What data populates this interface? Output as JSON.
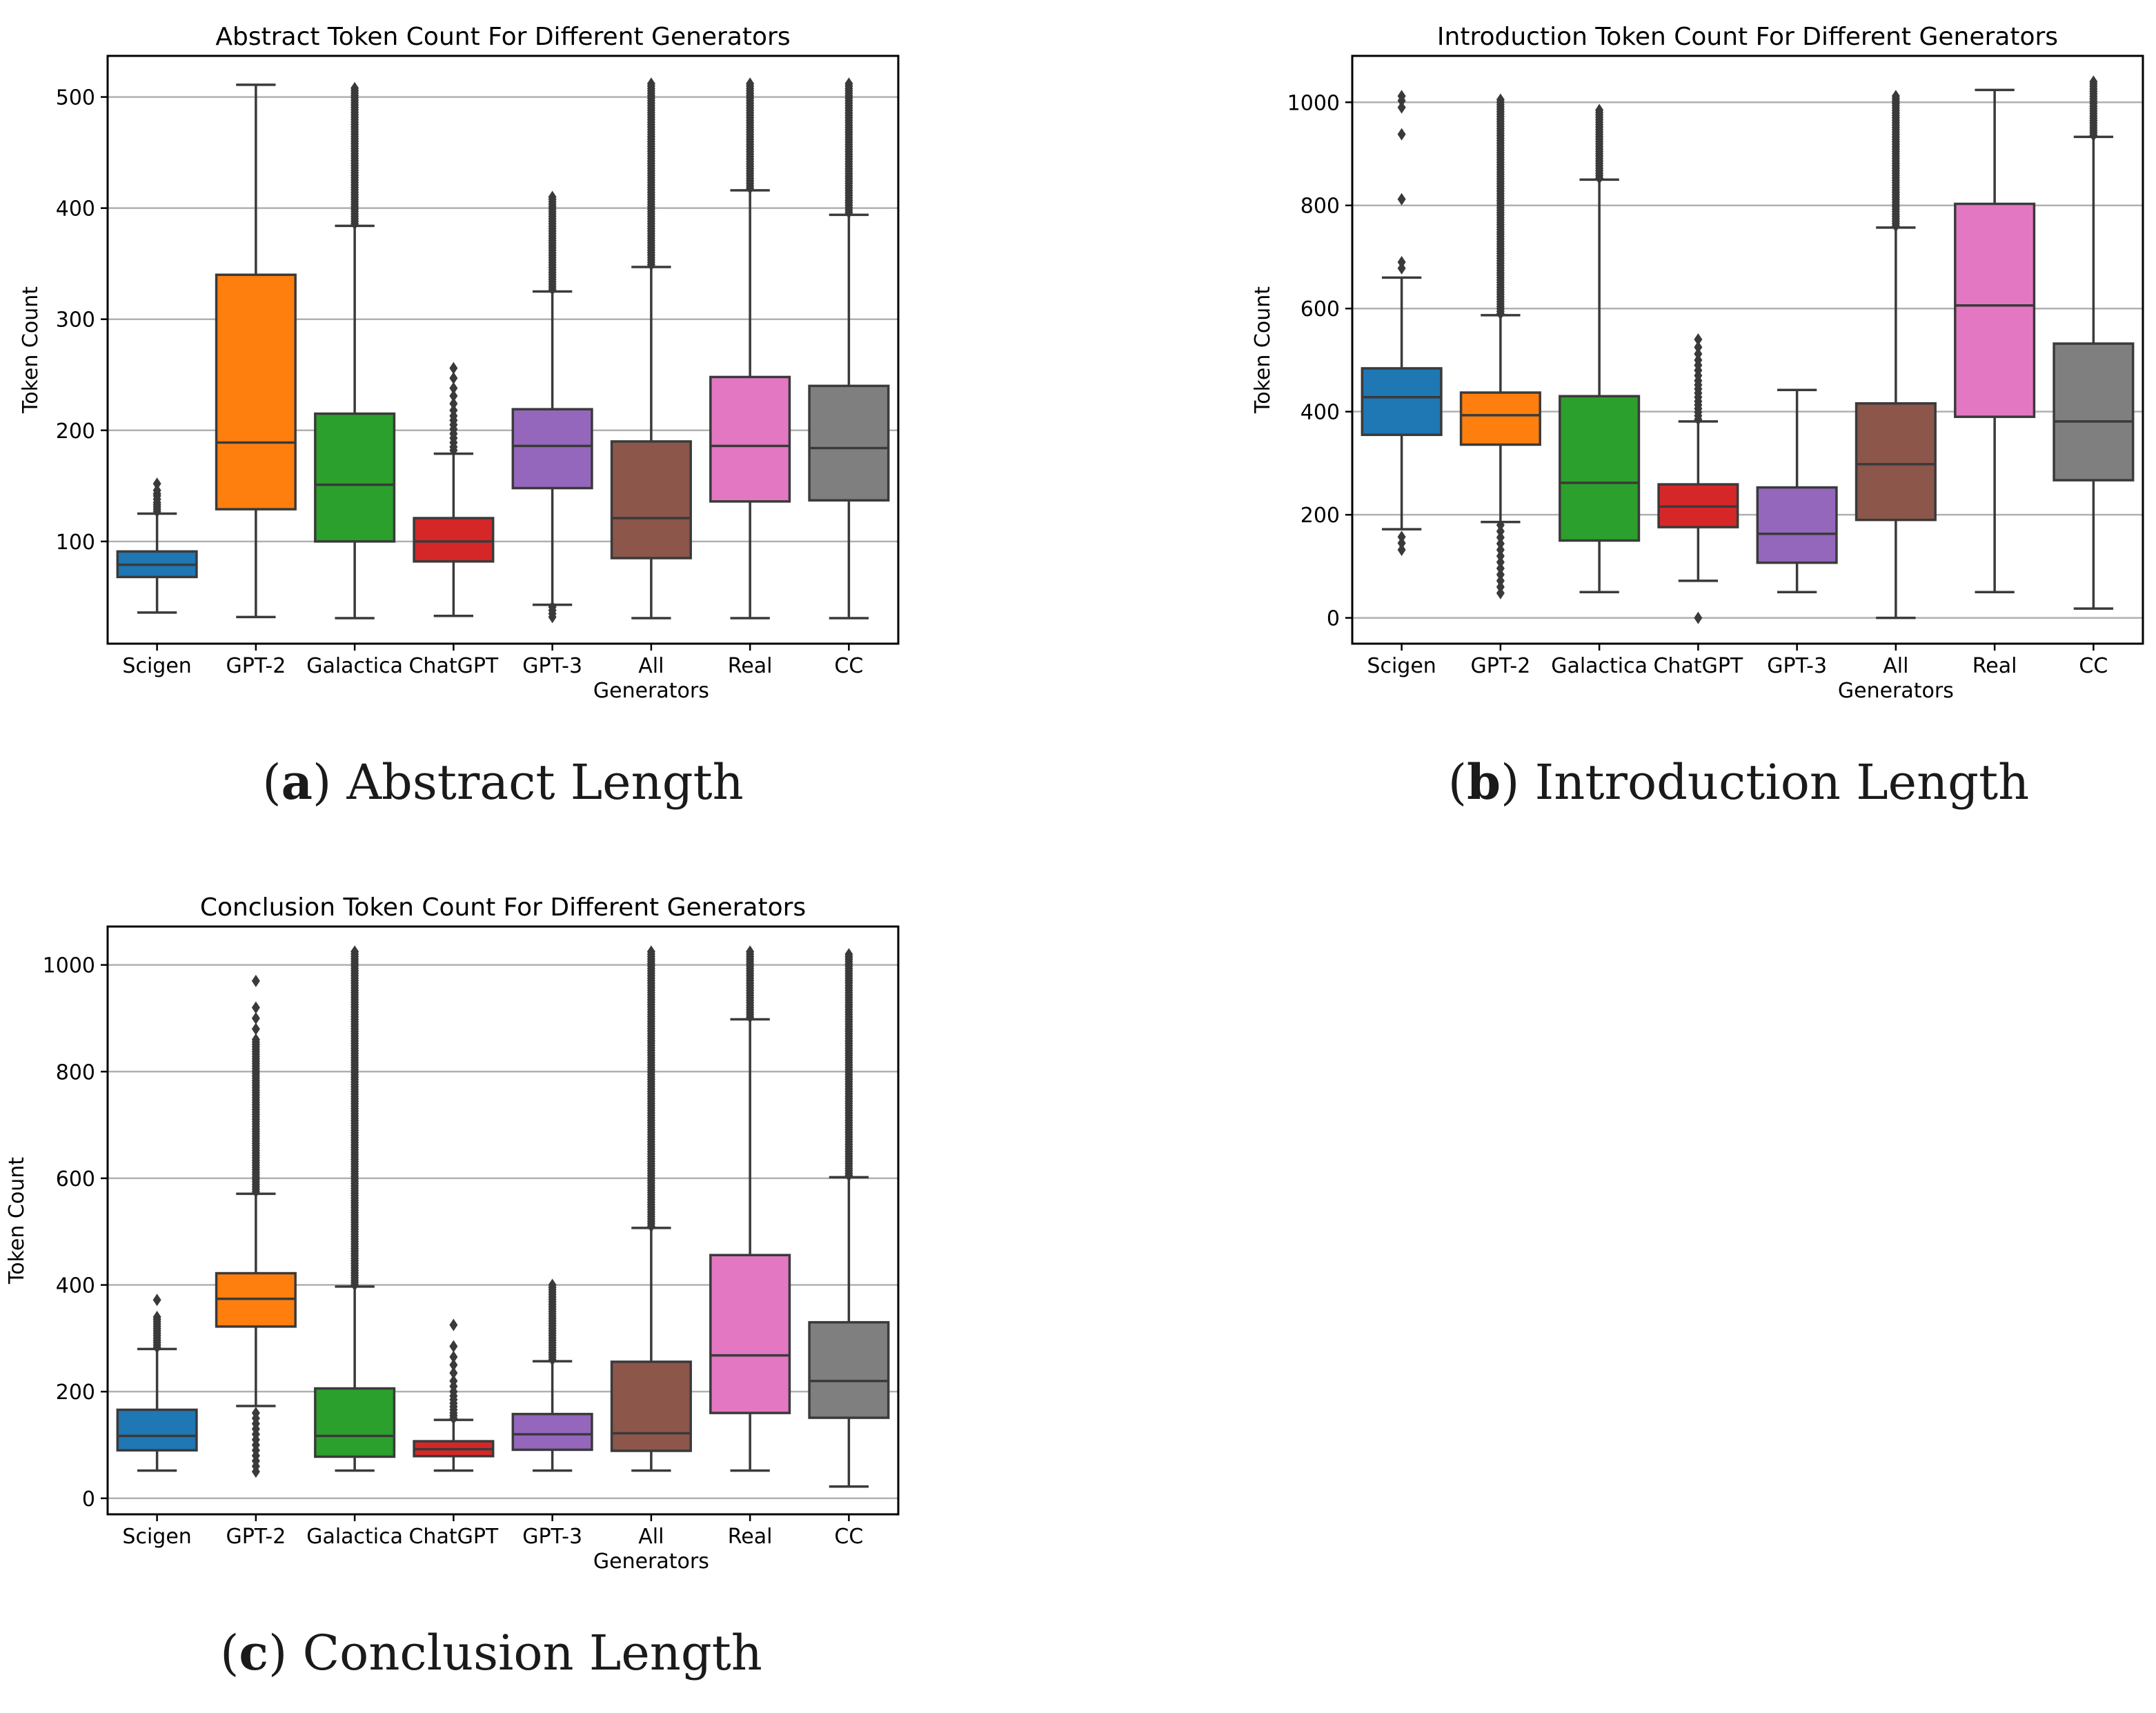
{
  "chart_data": [
    {
      "type": "box",
      "title": "Abstract Token Count For Different Generators",
      "ylabel": "Token Count",
      "xlabel": "",
      "caption": {
        "open": "(",
        "letter": "a",
        "close": ")",
        "text": " Abstract Length"
      },
      "ylim": [
        8,
        537
      ],
      "yticks": [
        100,
        200,
        300,
        400,
        500
      ],
      "grid": "y",
      "categories": [
        {
          "label": [
            "Scigen"
          ],
          "color": "#1f77b4",
          "whislo": 36,
          "q1": 68,
          "med": 79,
          "q3": 91,
          "whishi": 125,
          "fliers": [
            127,
            129,
            131,
            133,
            135,
            138,
            141,
            143,
            146,
            152
          ]
        },
        {
          "label": [
            "GPT-2"
          ],
          "color": "#ff7f0e",
          "whislo": 32,
          "q1": 129,
          "med": 189,
          "q3": 340,
          "whishi": 511,
          "fliers": []
        },
        {
          "label": [
            "Galactica"
          ],
          "color": "#2ca02c",
          "whislo": 31,
          "q1": 100,
          "med": 151,
          "q3": 215,
          "whishi": 384,
          "fliers": {
            "dense": [
              386,
              508
            ]
          }
        },
        {
          "label": [
            "ChatGPT"
          ],
          "color": "#d62728",
          "whislo": 33,
          "q1": 82,
          "med": 100,
          "q3": 121,
          "whishi": 179,
          "fliers": [
            182,
            185,
            189,
            193,
            197,
            201,
            205,
            209,
            213,
            218,
            224,
            231,
            238,
            247,
            256
          ]
        },
        {
          "label": [
            "GPT-3"
          ],
          "color": "#9467bd",
          "whislo": 43,
          "q1": 148,
          "med": 186,
          "q3": 219,
          "whishi": 325,
          "fliers": {
            "dense": [
              327,
              410
            ],
            "low": [
              32,
              35,
              38,
              41
            ]
          }
        },
        {
          "label": [
            "All",
            "Generators"
          ],
          "color": "#8c564b",
          "whislo": 31,
          "q1": 85,
          "med": 121,
          "q3": 190,
          "whishi": 347,
          "fliers": {
            "dense": [
              349,
              512
            ]
          }
        },
        {
          "label": [
            "Real"
          ],
          "color": "#e377c2",
          "whislo": 31,
          "q1": 136,
          "med": 186,
          "q3": 248,
          "whishi": 416,
          "fliers": {
            "dense": [
              418,
              512
            ]
          }
        },
        {
          "label": [
            "CC"
          ],
          "color": "#7f7f7f",
          "whislo": 31,
          "q1": 137,
          "med": 184,
          "q3": 240,
          "whishi": 394,
          "fliers": {
            "dense": [
              396,
              512
            ]
          }
        }
      ]
    },
    {
      "type": "box",
      "title": "Introduction Token Count For Different Generators",
      "ylabel": "Token Count",
      "xlabel": "",
      "caption": {
        "open": "(",
        "letter": "b",
        "close": ")",
        "text": " Introduction Length"
      },
      "ylim": [
        -50,
        1090
      ],
      "yticks": [
        0,
        200,
        400,
        600,
        800,
        1000
      ],
      "grid": "y",
      "categories": [
        {
          "label": [
            "Scigen"
          ],
          "color": "#1f77b4",
          "whislo": 172,
          "q1": 355,
          "med": 428,
          "q3": 484,
          "whishi": 660,
          "fliers": [
            132,
            145,
            157,
            678,
            690,
            812,
            938,
            990,
            1003,
            1012
          ]
        },
        {
          "label": [
            "GPT-2"
          ],
          "color": "#ff7f0e",
          "whislo": 186,
          "q1": 336,
          "med": 393,
          "q3": 437,
          "whishi": 587,
          "fliers": {
            "dense": [
              590,
              1005
            ],
            "low": [
              48,
              60,
              72,
              84,
              96,
              108,
              120,
              132,
              144,
              156,
              168,
              180
            ]
          }
        },
        {
          "label": [
            "Galactica"
          ],
          "color": "#2ca02c",
          "whislo": 50,
          "q1": 150,
          "med": 262,
          "q3": 430,
          "whishi": 850,
          "fliers": {
            "dense": [
              853,
              985
            ]
          }
        },
        {
          "label": [
            "ChatGPT"
          ],
          "color": "#d62728",
          "whislo": 72,
          "q1": 176,
          "med": 216,
          "q3": 259,
          "whishi": 381,
          "fliers": [
            0,
            385,
            392,
            399,
            406,
            413,
            420,
            428,
            436,
            444,
            452,
            460,
            470,
            480,
            490,
            500,
            512,
            525,
            540
          ]
        },
        {
          "label": [
            "GPT-3"
          ],
          "color": "#9467bd",
          "whislo": 50,
          "q1": 107,
          "med": 163,
          "q3": 253,
          "whishi": 442,
          "fliers": []
        },
        {
          "label": [
            "All",
            "Generators"
          ],
          "color": "#8c564b",
          "whislo": 0,
          "q1": 190,
          "med": 298,
          "q3": 416,
          "whishi": 757,
          "fliers": {
            "dense": [
              760,
              1012
            ]
          }
        },
        {
          "label": [
            "Real"
          ],
          "color": "#e377c2",
          "whislo": 50,
          "q1": 390,
          "med": 606,
          "q3": 803,
          "whishi": 1024,
          "fliers": []
        },
        {
          "label": [
            "CC"
          ],
          "color": "#7f7f7f",
          "whislo": 18,
          "q1": 267,
          "med": 381,
          "q3": 532,
          "whishi": 933,
          "fliers": {
            "dense": [
              936,
              1040
            ]
          }
        }
      ]
    },
    {
      "type": "box",
      "title": "Conclusion Token Count For Different Generators",
      "ylabel": "Token Count",
      "xlabel": "",
      "caption": {
        "open": "(",
        "letter": "c",
        "close": ")",
        "text": " Conclusion Length"
      },
      "ylim": [
        -30,
        1072
      ],
      "yticks": [
        0,
        200,
        400,
        600,
        800,
        1000
      ],
      "grid": "y",
      "categories": [
        {
          "label": [
            "Scigen"
          ],
          "color": "#1f77b4",
          "whislo": 52,
          "q1": 90,
          "med": 117,
          "q3": 166,
          "whishi": 280,
          "fliers": {
            "dense": [
              283,
              340
            ],
            "extra": [
              372
            ]
          }
        },
        {
          "label": [
            "GPT-2"
          ],
          "color": "#ff7f0e",
          "whislo": 173,
          "q1": 322,
          "med": 374,
          "q3": 422,
          "whishi": 571,
          "fliers": {
            "dense": [
              575,
              860
            ],
            "extra": [
              880,
              900,
              920,
              970
            ],
            "low": [
              50,
              60,
              70,
              80,
              90,
              100,
              110,
              120,
              130,
              140,
              150,
              160
            ]
          }
        },
        {
          "label": [
            "Galactica"
          ],
          "color": "#2ca02c",
          "whislo": 52,
          "q1": 78,
          "med": 117,
          "q3": 206,
          "whishi": 397,
          "fliers": {
            "dense": [
              400,
              1025
            ]
          }
        },
        {
          "label": [
            "ChatGPT"
          ],
          "color": "#d62728",
          "whislo": 52,
          "q1": 79,
          "med": 92,
          "q3": 107,
          "whishi": 147,
          "fliers": [
            150,
            155,
            160,
            166,
            172,
            178,
            185,
            192,
            200,
            210,
            220,
            235,
            250,
            265,
            285,
            325
          ]
        },
        {
          "label": [
            "GPT-3"
          ],
          "color": "#9467bd",
          "whislo": 52,
          "q1": 91,
          "med": 120,
          "q3": 158,
          "whishi": 257,
          "fliers": {
            "dense": [
              260,
              400
            ]
          }
        },
        {
          "label": [
            "All",
            "Generators"
          ],
          "color": "#8c564b",
          "whislo": 52,
          "q1": 89,
          "med": 122,
          "q3": 256,
          "whishi": 507,
          "fliers": {
            "dense": [
              510,
              1025
            ]
          }
        },
        {
          "label": [
            "Real"
          ],
          "color": "#e377c2",
          "whislo": 52,
          "q1": 160,
          "med": 268,
          "q3": 456,
          "whishi": 898,
          "fliers": {
            "dense": [
              902,
              1025
            ]
          }
        },
        {
          "label": [
            "CC"
          ],
          "color": "#7f7f7f",
          "whislo": 22,
          "q1": 151,
          "med": 220,
          "q3": 330,
          "whishi": 602,
          "fliers": {
            "dense": [
              605,
              1020
            ]
          }
        }
      ]
    }
  ]
}
